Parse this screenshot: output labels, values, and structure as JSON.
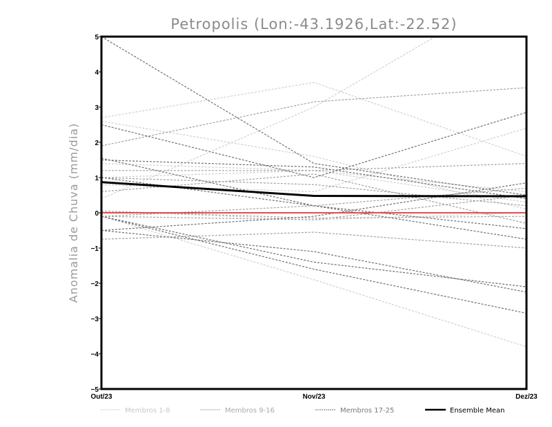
{
  "chart_data": {
    "type": "line",
    "title": "Petropolis (Lon:-43.1926,Lat:-22.52)",
    "xlabel": "",
    "ylabel": "Anomalia de Chuva (mm/dia)",
    "categories": [
      "Out/23",
      "Nov/23",
      "Dez/23"
    ],
    "ylim": [
      -5,
      5
    ],
    "yticks": [
      "5",
      "4",
      "3",
      "2",
      "1",
      "0",
      "-1",
      "-2",
      "-3",
      "-4",
      "-5"
    ],
    "reference_line": {
      "value": 0,
      "color": "#e84a4a"
    },
    "groups": [
      {
        "name": "Membros 1-8",
        "color": "#cfcfcf",
        "series": [
          [
            2.7,
            3.7,
            1.6
          ],
          [
            0.4,
            3.0,
            6.5
          ],
          [
            2.6,
            1.6,
            0.1
          ],
          [
            1.4,
            1.2,
            0.6
          ],
          [
            0.8,
            0.6,
            2.4
          ],
          [
            -0.1,
            -1.9,
            -3.8
          ],
          [
            0.05,
            -0.2,
            0.0
          ],
          [
            1.0,
            1.2,
            0.3
          ]
        ]
      },
      {
        "name": "Membros 9-16",
        "color": "#a0a0a0",
        "series": [
          [
            1.9,
            3.15,
            3.55
          ],
          [
            1.2,
            1.2,
            1.4
          ],
          [
            -0.1,
            0.2,
            0.7
          ],
          [
            0.05,
            -0.15,
            -0.1
          ],
          [
            -0.75,
            -0.55,
            -1.0
          ],
          [
            0.6,
            1.1,
            -0.3
          ],
          [
            1.0,
            0.8,
            0.2
          ],
          [
            -0.1,
            -0.2,
            0.5
          ]
        ]
      },
      {
        "name": "Membros 17-25",
        "color": "#6e6e6e",
        "series": [
          [
            5.0,
            1.4,
            0.5
          ],
          [
            2.5,
            1.0,
            2.85
          ],
          [
            1.55,
            0.2,
            -0.45
          ],
          [
            -0.5,
            -0.1,
            0.85
          ],
          [
            1.0,
            0.2,
            -0.75
          ],
          [
            -0.1,
            -1.4,
            -2.1
          ],
          [
            -0.1,
            -1.6,
            -2.85
          ],
          [
            -0.5,
            -1.1,
            -2.25
          ],
          [
            1.5,
            1.3,
            0.4
          ]
        ]
      }
    ],
    "ensemble_mean": {
      "name": "Ensemble Mean",
      "color": "#000000",
      "values": [
        0.87,
        0.48,
        0.47
      ]
    },
    "legend_position": "bottom",
    "grid": false
  }
}
